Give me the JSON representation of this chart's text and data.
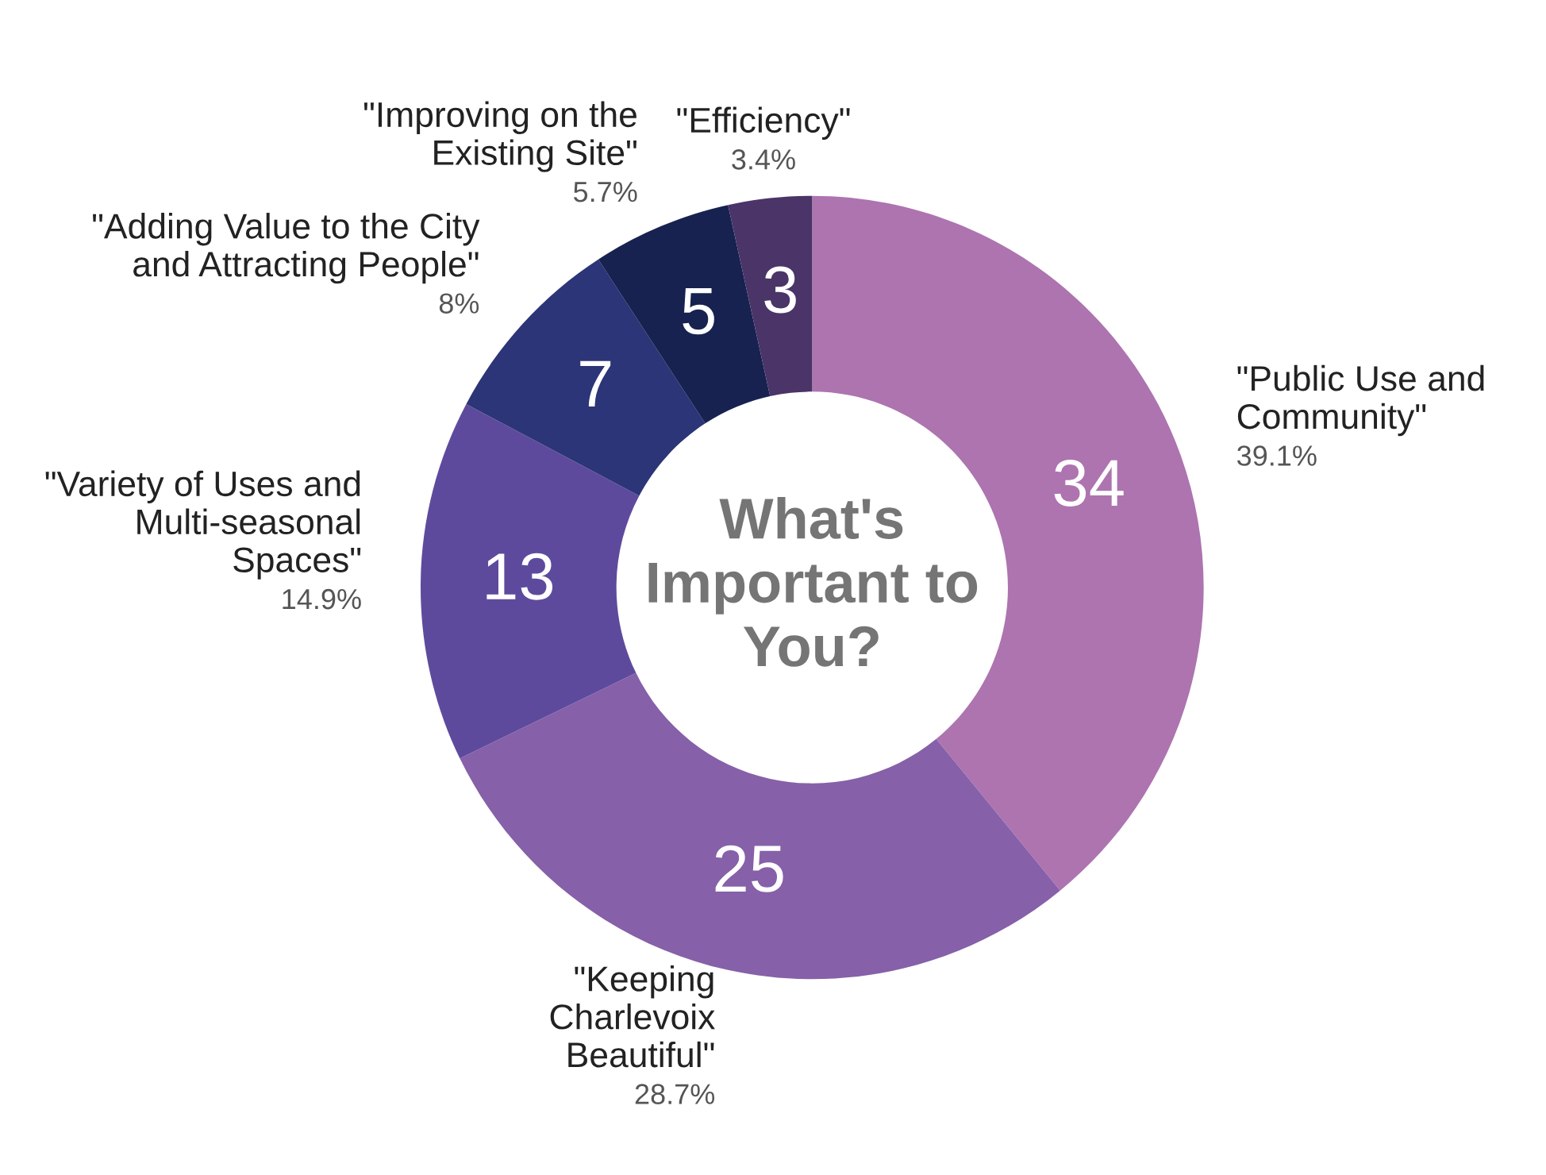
{
  "chart_data": {
    "type": "donut",
    "title": "What's\nImportant to\nYou?",
    "categories": [
      "\"Public Use and\nCommunity\"",
      "\"Keeping\nCharlevoix\nBeautiful\"",
      "\"Variety of Uses and\nMulti-seasonal\nSpaces\"",
      "\"Adding Value to the City\nand Attracting People\"",
      "\"Improving on the\nExisting Site\"",
      "\"Efficiency\""
    ],
    "values": [
      34,
      25,
      13,
      7,
      5,
      3
    ],
    "colors": [
      "#ad74b0",
      "#8660a8",
      "#5e4a9d",
      "#2b3577",
      "#172250",
      "#4a3468"
    ],
    "data_labels": true,
    "annotations": [
      {
        "text": "39.1%",
        "x": "\"Public Use and\nCommunity\""
      },
      {
        "text": "28.7%",
        "x": "\"Keeping\nCharlevoix\nBeautiful\""
      },
      {
        "text": "14.9%",
        "x": "\"Variety of Uses and\nMulti-seasonal\nSpaces\""
      },
      {
        "text": "8%",
        "x": "\"Adding Value to the City\nand Attracting People\""
      },
      {
        "text": "5.7%",
        "x": "\"Improving on the\nExisting Site\""
      },
      {
        "text": "3.4%",
        "x": "\"Efficiency\""
      }
    ]
  }
}
